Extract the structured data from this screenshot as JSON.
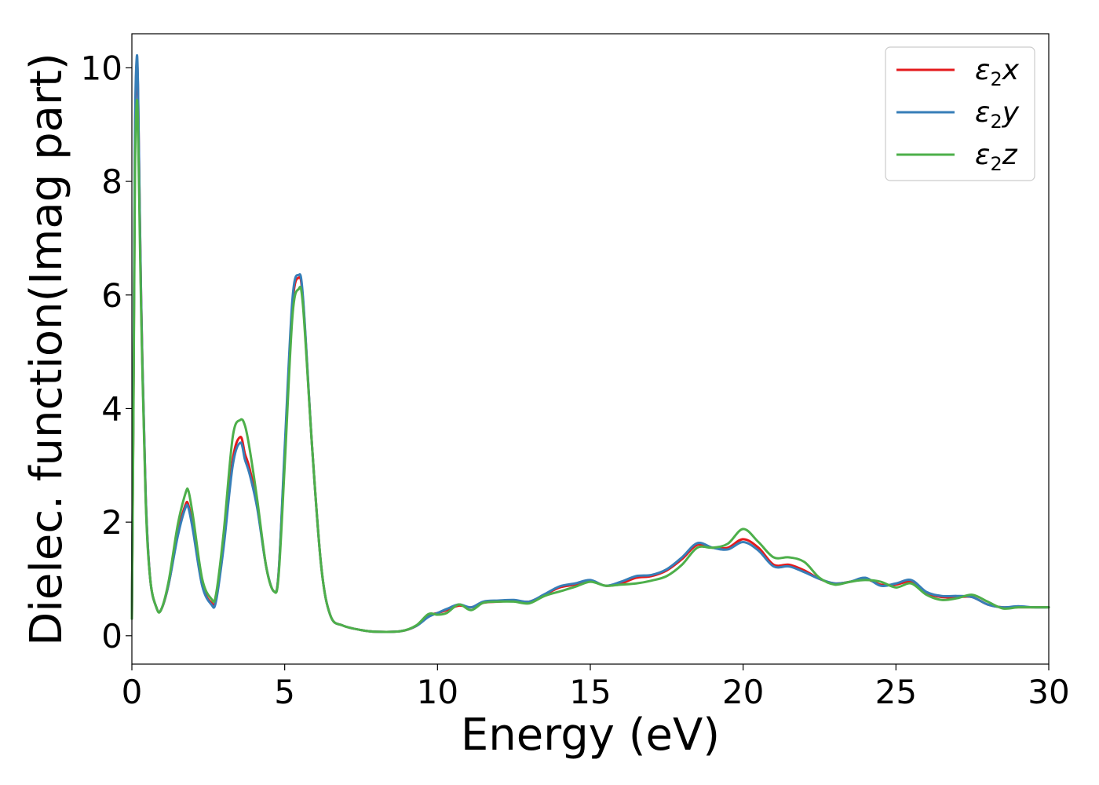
{
  "chart_data": {
    "type": "line",
    "xlabel": "Energy (eV)",
    "ylabel": "Dielec. function(Imag part)",
    "xlim": [
      0,
      30
    ],
    "ylim": [
      -0.5,
      10.6
    ],
    "xticks": [
      0,
      5,
      10,
      15,
      20,
      25,
      30
    ],
    "yticks": [
      0,
      2,
      4,
      6,
      8,
      10
    ],
    "grid": false,
    "legend_position": "top-right",
    "series": [
      {
        "name": "ε2x",
        "legend": {
          "symbol": "ε",
          "sub": "2",
          "axis": "x"
        },
        "color": "#e41a1c",
        "x": [
          0,
          0.05,
          0.1,
          0.15,
          0.2,
          0.3,
          0.45,
          0.6,
          0.8,
          0.95,
          1.2,
          1.5,
          1.75,
          1.85,
          2.0,
          2.3,
          2.6,
          2.75,
          3.0,
          3.3,
          3.55,
          3.7,
          3.85,
          4.1,
          4.4,
          4.65,
          4.8,
          5.0,
          5.25,
          5.45,
          5.6,
          5.9,
          6.2,
          6.5,
          6.9,
          7.5,
          8.0,
          8.8,
          9.3,
          9.7,
          10.0,
          10.3,
          10.7,
          11.1,
          11.5,
          12.0,
          12.5,
          13.0,
          13.5,
          14.0,
          14.5,
          15.0,
          15.5,
          16.0,
          16.5,
          17.0,
          17.5,
          18.0,
          18.5,
          19.0,
          19.5,
          20.0,
          20.5,
          21.0,
          21.5,
          22.0,
          22.5,
          23.0,
          23.5,
          24.0,
          24.5,
          25.0,
          25.5,
          26.0,
          26.5,
          27.0,
          27.5,
          28.0,
          28.5,
          29.0,
          29.5,
          30.0
        ],
        "values": [
          0.3,
          4.0,
          8.5,
          10.0,
          9.6,
          6.0,
          2.5,
          1.0,
          0.5,
          0.45,
          0.9,
          1.8,
          2.3,
          2.3,
          1.9,
          0.9,
          0.58,
          0.65,
          1.6,
          3.1,
          3.5,
          3.2,
          2.95,
          2.3,
          1.2,
          0.78,
          1.1,
          3.2,
          5.8,
          6.3,
          5.9,
          3.3,
          1.2,
          0.35,
          0.18,
          0.1,
          0.07,
          0.08,
          0.17,
          0.35,
          0.4,
          0.45,
          0.53,
          0.5,
          0.58,
          0.6,
          0.62,
          0.6,
          0.72,
          0.85,
          0.9,
          0.97,
          0.88,
          0.92,
          1.02,
          1.05,
          1.15,
          1.35,
          1.6,
          1.55,
          1.55,
          1.7,
          1.55,
          1.25,
          1.25,
          1.15,
          1.0,
          0.92,
          0.95,
          1.0,
          0.9,
          0.9,
          0.95,
          0.75,
          0.68,
          0.68,
          0.68,
          0.55,
          0.5,
          0.5,
          0.5,
          0.5
        ]
      },
      {
        "name": "ε2y",
        "legend": {
          "symbol": "ε",
          "sub": "2",
          "axis": "y"
        },
        "color": "#377eb8",
        "x": [
          0,
          0.05,
          0.1,
          0.15,
          0.2,
          0.3,
          0.45,
          0.6,
          0.8,
          0.95,
          1.2,
          1.5,
          1.75,
          1.85,
          2.0,
          2.3,
          2.6,
          2.75,
          3.0,
          3.3,
          3.55,
          3.7,
          3.85,
          4.1,
          4.4,
          4.65,
          4.8,
          5.0,
          5.25,
          5.45,
          5.6,
          5.9,
          6.2,
          6.5,
          6.9,
          7.5,
          8.0,
          8.8,
          9.3,
          9.7,
          10.0,
          10.3,
          10.7,
          11.1,
          11.5,
          12.0,
          12.5,
          13.0,
          13.5,
          14.0,
          14.5,
          15.0,
          15.5,
          16.0,
          16.5,
          17.0,
          17.5,
          18.0,
          18.5,
          19.0,
          19.5,
          20.0,
          20.5,
          21.0,
          21.5,
          22.0,
          22.5,
          23.0,
          23.5,
          24.0,
          24.5,
          25.0,
          25.5,
          26.0,
          26.5,
          27.0,
          27.5,
          28.0,
          28.5,
          29.0,
          29.5,
          30.0
        ],
        "values": [
          0.3,
          4.2,
          8.8,
          10.1,
          9.7,
          6.0,
          2.5,
          1.0,
          0.5,
          0.45,
          0.9,
          1.75,
          2.25,
          2.25,
          1.85,
          0.88,
          0.55,
          0.6,
          1.55,
          3.0,
          3.4,
          3.1,
          2.85,
          2.25,
          1.2,
          0.78,
          1.1,
          3.3,
          5.9,
          6.35,
          5.95,
          3.3,
          1.2,
          0.35,
          0.18,
          0.1,
          0.07,
          0.08,
          0.17,
          0.33,
          0.4,
          0.47,
          0.55,
          0.5,
          0.6,
          0.62,
          0.63,
          0.6,
          0.73,
          0.87,
          0.92,
          0.98,
          0.88,
          0.95,
          1.05,
          1.07,
          1.17,
          1.38,
          1.63,
          1.55,
          1.52,
          1.65,
          1.5,
          1.22,
          1.22,
          1.12,
          1.0,
          0.92,
          0.95,
          1.02,
          0.88,
          0.92,
          0.98,
          0.77,
          0.7,
          0.7,
          0.68,
          0.55,
          0.5,
          0.52,
          0.5,
          0.5
        ]
      },
      {
        "name": "ε2z",
        "legend": {
          "symbol": "ε",
          "sub": "2",
          "axis": "z"
        },
        "color": "#4daf4a",
        "x": [
          0,
          0.05,
          0.1,
          0.15,
          0.2,
          0.3,
          0.45,
          0.6,
          0.8,
          0.95,
          1.2,
          1.5,
          1.75,
          1.85,
          2.0,
          2.3,
          2.6,
          2.75,
          3.0,
          3.3,
          3.55,
          3.7,
          3.85,
          4.1,
          4.4,
          4.65,
          4.8,
          5.0,
          5.25,
          5.45,
          5.6,
          5.9,
          6.2,
          6.5,
          6.9,
          7.5,
          8.0,
          8.8,
          9.3,
          9.7,
          10.0,
          10.3,
          10.7,
          11.1,
          11.5,
          12.0,
          12.5,
          13.0,
          13.5,
          14.0,
          14.5,
          15.0,
          15.5,
          16.0,
          16.5,
          17.0,
          17.5,
          18.0,
          18.5,
          19.0,
          19.5,
          20.0,
          20.5,
          21.0,
          21.5,
          22.0,
          22.5,
          23.0,
          23.5,
          24.0,
          24.5,
          25.0,
          25.5,
          26.0,
          26.5,
          27.0,
          27.5,
          28.0,
          28.5,
          29.0,
          29.5,
          30.0
        ],
        "values": [
          0.3,
          3.8,
          8.0,
          9.3,
          9.0,
          5.8,
          2.4,
          1.0,
          0.5,
          0.45,
          0.95,
          1.95,
          2.5,
          2.55,
          2.1,
          1.0,
          0.65,
          0.72,
          1.8,
          3.5,
          3.8,
          3.7,
          3.3,
          2.4,
          1.2,
          0.78,
          1.05,
          3.0,
          5.6,
          6.1,
          5.8,
          3.3,
          1.2,
          0.35,
          0.18,
          0.1,
          0.07,
          0.08,
          0.18,
          0.38,
          0.37,
          0.4,
          0.55,
          0.45,
          0.58,
          0.6,
          0.6,
          0.57,
          0.7,
          0.78,
          0.86,
          0.95,
          0.88,
          0.9,
          0.92,
          0.97,
          1.05,
          1.25,
          1.55,
          1.55,
          1.62,
          1.88,
          1.65,
          1.38,
          1.38,
          1.3,
          1.02,
          0.9,
          0.95,
          0.98,
          0.95,
          0.85,
          0.92,
          0.72,
          0.63,
          0.66,
          0.72,
          0.6,
          0.48,
          0.5,
          0.5,
          0.5
        ]
      }
    ]
  }
}
